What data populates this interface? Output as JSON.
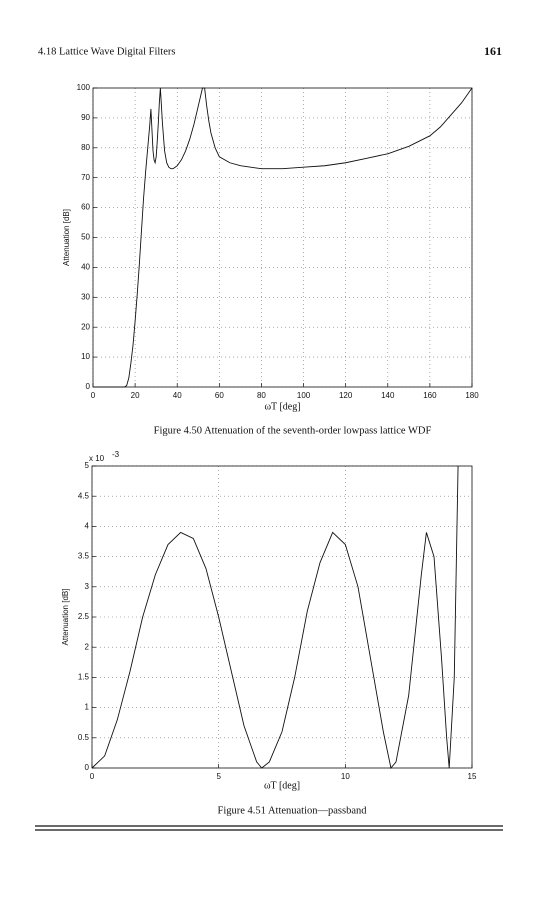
{
  "header": {
    "section": "4.18 Lattice Wave Digital Filters",
    "page": "161"
  },
  "chart_data": [
    {
      "type": "line",
      "caption": "Figure 4.50 Attenuation of the seventh-order lowpass lattice WDF",
      "xlabel": "ωT [deg]",
      "ylabel": "Attenuation [dB]",
      "x": [
        0,
        10,
        15,
        16,
        17,
        18,
        19,
        20,
        21,
        22,
        23,
        24,
        25,
        26,
        27,
        27.5,
        28,
        28.5,
        29,
        29.5,
        30,
        30.5,
        31,
        31.5,
        32,
        33,
        34,
        35,
        36,
        37,
        38,
        39,
        40,
        42,
        44,
        46,
        48,
        50,
        51,
        52,
        52.5,
        53,
        54,
        55,
        56,
        58,
        60,
        65,
        70,
        80,
        90,
        100,
        110,
        120,
        130,
        140,
        150,
        160,
        165,
        170,
        175,
        180
      ],
      "values": [
        0,
        0,
        0,
        0.5,
        3,
        8,
        14,
        22,
        31,
        41,
        52,
        63,
        72,
        80,
        88,
        93,
        86,
        79,
        76,
        75,
        77,
        82,
        88,
        95,
        100,
        88,
        79,
        75,
        73.5,
        73,
        73,
        73.5,
        74,
        76,
        79,
        83,
        88,
        94,
        97,
        100,
        100,
        100,
        94,
        89,
        85,
        80,
        77,
        75,
        74,
        73,
        73,
        73.5,
        74,
        75,
        76.5,
        78,
        80.5,
        84,
        87,
        91,
        95,
        100
      ],
      "color": "#111111",
      "xlim": [
        0,
        180
      ],
      "xticks": [
        0,
        20,
        40,
        60,
        80,
        100,
        120,
        140,
        160,
        180
      ],
      "ylim": [
        0,
        100
      ],
      "yticks": [
        0,
        10,
        20,
        30,
        40,
        50,
        60,
        70,
        80,
        90,
        100
      ],
      "grid": true
    },
    {
      "type": "line",
      "caption": "Figure 4.51 Attenuation—passband",
      "xlabel": "ωT [deg]",
      "ylabel": "Attenuation [dB]",
      "y_multiplier": "x 10",
      "y_multiplier_exponent": "-3",
      "x": [
        0,
        0.5,
        1,
        1.5,
        2,
        2.5,
        3,
        3.5,
        4,
        4.5,
        5,
        5.5,
        6,
        6.5,
        6.7,
        7,
        7.5,
        8,
        8.5,
        9,
        9.5,
        10,
        10.5,
        11,
        11.5,
        11.8,
        12,
        12.5,
        13,
        13.2,
        13.5,
        13.8,
        14,
        14.1,
        14.3,
        14.45
      ],
      "values": [
        0,
        0.2,
        0.8,
        1.6,
        2.5,
        3.2,
        3.7,
        3.9,
        3.8,
        3.3,
        2.5,
        1.6,
        0.7,
        0.1,
        0,
        0.1,
        0.6,
        1.5,
        2.6,
        3.4,
        3.9,
        3.7,
        3.0,
        1.8,
        0.6,
        0,
        0.1,
        1.2,
        3.2,
        3.9,
        3.5,
        1.8,
        0.5,
        0,
        1.5,
        5
      ],
      "color": "#111111",
      "xlim": [
        0,
        15
      ],
      "xticks": [
        0,
        5,
        10,
        15
      ],
      "ylim": [
        0,
        5
      ],
      "yticks": [
        0,
        0.5,
        1,
        1.5,
        2,
        2.5,
        3,
        3.5,
        4,
        4.5,
        5
      ],
      "grid": true
    }
  ]
}
